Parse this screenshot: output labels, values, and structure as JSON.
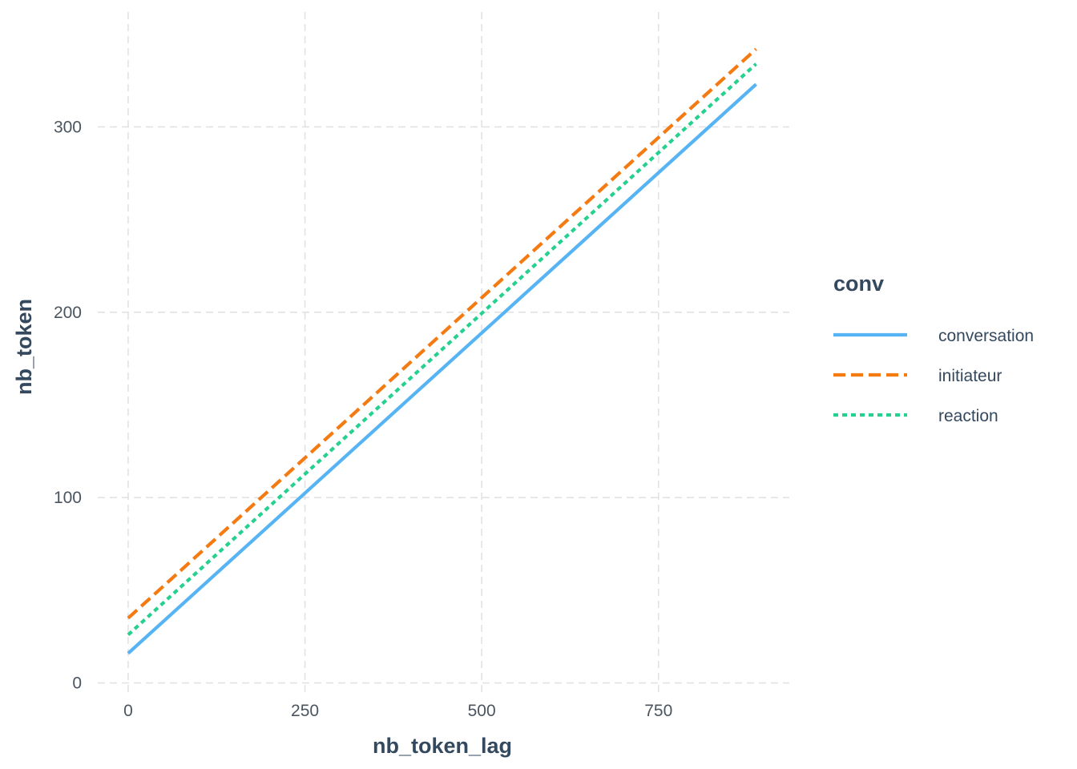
{
  "chart_data": {
    "type": "line",
    "xlabel": "nb_token_lag",
    "ylabel": "nb_token",
    "xlim": [
      -43,
      935
    ],
    "ylim": [
      -14,
      362
    ],
    "x_ticks": [
      0,
      250,
      500,
      750
    ],
    "x_tick_labels": [
      "0",
      "250",
      "500",
      "750"
    ],
    "y_ticks": [
      0,
      100,
      200,
      300
    ],
    "y_tick_labels": [
      "0",
      "100",
      "200",
      "300"
    ],
    "grid": true,
    "legend": {
      "title": "conv",
      "placement": "right"
    },
    "series": [
      {
        "name": "conversation",
        "color": "#56B4F4",
        "dash": "solid",
        "x": [
          0,
          888
        ],
        "y": [
          16,
          323
        ]
      },
      {
        "name": "initiateur",
        "color": "#F47A12",
        "dash": "dashed",
        "x": [
          0,
          888
        ],
        "y": [
          35,
          342
        ]
      },
      {
        "name": "reaction",
        "color": "#26D08E",
        "dash": "dotted",
        "x": [
          0,
          888
        ],
        "y": [
          26,
          334
        ]
      }
    ]
  }
}
